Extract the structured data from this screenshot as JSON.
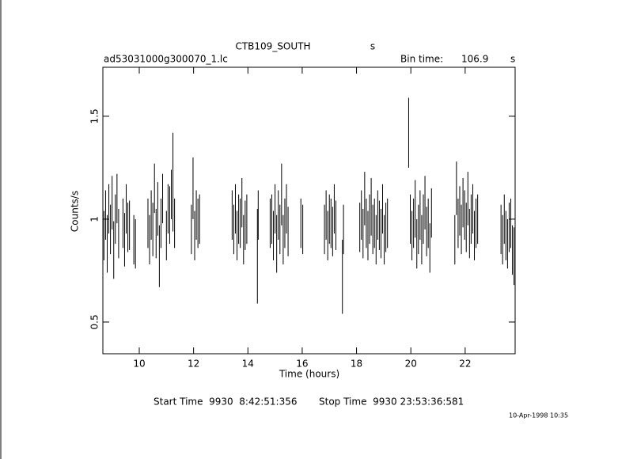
{
  "chart_data": {
    "type": "errorbar",
    "title": "CTB109_SOUTH",
    "title_unit": "s",
    "file_name": "ad53031000g300070_1.lc",
    "bin_time_label": "Bin time:",
    "bin_time": 106.9,
    "bin_time_unit": "s",
    "y_label": "Counts/s",
    "x_label": "Time (hours)",
    "start_time": "Start Time  9930  8:42:51:356",
    "stop_time": "Stop Time  9930 23:53:36:581",
    "timestamp": "10-Apr-1998 10:35",
    "color": "#000000",
    "xlim": [
      8.66,
      23.84
    ],
    "ylim": [
      0.346,
      1.738
    ],
    "xticks": [
      10,
      12,
      14,
      16,
      18,
      20,
      22
    ],
    "yticks": [
      0.5,
      1,
      1.5
    ],
    "x": [
      8.7,
      8.76,
      8.82,
      8.88,
      8.94,
      9.0,
      9.06,
      9.12,
      9.18,
      9.24,
      9.4,
      9.46,
      9.52,
      9.58,
      9.64,
      9.8,
      9.86,
      10.32,
      10.38,
      10.44,
      10.5,
      10.56,
      10.62,
      10.68,
      10.74,
      10.8,
      10.86,
      11.0,
      11.06,
      11.12,
      11.18,
      11.24,
      11.3,
      11.92,
      11.98,
      12.04,
      12.1,
      12.16,
      12.22,
      13.42,
      13.48,
      13.54,
      13.6,
      13.66,
      13.72,
      13.78,
      13.84,
      13.9,
      13.96,
      14.35,
      14.38,
      14.82,
      14.88,
      14.94,
      15.0,
      15.06,
      15.12,
      15.18,
      15.24,
      15.3,
      15.36,
      15.42,
      15.48,
      15.95,
      16.02,
      16.82,
      16.88,
      16.94,
      17.0,
      17.06,
      17.12,
      17.18,
      17.24,
      17.48,
      17.52,
      18.12,
      18.18,
      18.24,
      18.3,
      18.36,
      18.42,
      18.48,
      18.54,
      18.6,
      18.66,
      18.72,
      18.78,
      18.84,
      18.9,
      18.96,
      19.02,
      19.08,
      19.14,
      19.92,
      19.98,
      20.04,
      20.1,
      20.16,
      20.22,
      20.28,
      20.34,
      20.4,
      20.46,
      20.52,
      20.58,
      20.64,
      20.7,
      20.76,
      21.62,
      21.68,
      21.74,
      21.8,
      21.86,
      21.92,
      21.98,
      22.04,
      22.1,
      22.16,
      22.22,
      22.28,
      22.34,
      22.4,
      22.46,
      23.32,
      23.38,
      23.44,
      23.5,
      23.56,
      23.62,
      23.68,
      23.74,
      23.8,
      23.84
    ],
    "values": [
      0.92,
      1.02,
      0.88,
      1.05,
      0.95,
      1.08,
      0.85,
      1.0,
      1.1,
      0.93,
      0.98,
      0.9,
      1.05,
      0.96,
      0.97,
      0.9,
      0.88,
      0.98,
      0.9,
      1.02,
      0.95,
      1.15,
      0.93,
      1.05,
      0.82,
      0.98,
      1.1,
      0.92,
      1.05,
      1.02,
      1.12,
      1.18,
      0.98,
      0.95,
      1.15,
      0.92,
      1.02,
      0.98,
      1.0,
      1.02,
      0.95,
      1.05,
      0.92,
      1.0,
      0.98,
      1.08,
      0.9,
      0.97,
      1.0,
      0.82,
      1.02,
      0.98,
      1.0,
      0.92,
      1.05,
      0.88,
      1.02,
      0.95,
      1.12,
      0.9,
      0.98,
      1.05,
      0.94,
      0.98,
      0.95,
      0.95,
      1.02,
      0.92,
      1.0,
      0.98,
      0.94,
      1.05,
      0.97,
      0.72,
      0.95,
      0.96,
      1.02,
      0.93,
      1.1,
      0.98,
      0.92,
      1.0,
      1.06,
      0.95,
      0.98,
      0.9,
      1.02,
      0.97,
      0.93,
      1.05,
      0.9,
      0.96,
      0.98,
      1.42,
      1.0,
      0.92,
      0.98,
      1.05,
      0.88,
      0.95,
      1.02,
      0.9,
      1.0,
      1.08,
      0.94,
      0.98,
      0.86,
      1.03,
      0.9,
      1.15,
      0.98,
      1.04,
      0.95,
      1.08,
      1.02,
      0.96,
      1.1,
      0.93,
      1.0,
      1.05,
      0.92,
      0.98,
      1.0,
      0.95,
      0.9,
      1.0,
      0.92,
      0.88,
      0.96,
      0.98,
      0.85,
      0.82,
      0.55
    ],
    "errors": [
      0.12,
      0.12,
      0.14,
      0.12,
      0.12,
      0.13,
      0.14,
      0.12,
      0.12,
      0.12,
      0.12,
      0.13,
      0.12,
      0.12,
      0.12,
      0.12,
      0.12,
      0.12,
      0.12,
      0.12,
      0.13,
      0.12,
      0.12,
      0.13,
      0.15,
      0.12,
      0.12,
      0.12,
      0.12,
      0.14,
      0.12,
      0.24,
      0.12,
      0.12,
      0.15,
      0.12,
      0.12,
      0.12,
      0.12,
      0.12,
      0.12,
      0.12,
      0.12,
      0.12,
      0.12,
      0.12,
      0.12,
      0.12,
      0.12,
      0.23,
      0.12,
      0.12,
      0.12,
      0.12,
      0.12,
      0.14,
      0.12,
      0.12,
      0.15,
      0.12,
      0.12,
      0.12,
      0.12,
      0.12,
      0.12,
      0.12,
      0.12,
      0.12,
      0.12,
      0.12,
      0.12,
      0.12,
      0.12,
      0.18,
      0.12,
      0.12,
      0.12,
      0.12,
      0.13,
      0.12,
      0.12,
      0.12,
      0.14,
      0.12,
      0.12,
      0.12,
      0.12,
      0.12,
      0.12,
      0.12,
      0.12,
      0.12,
      0.12,
      0.17,
      0.12,
      0.12,
      0.12,
      0.14,
      0.12,
      0.12,
      0.12,
      0.12,
      0.12,
      0.13,
      0.12,
      0.12,
      0.12,
      0.12,
      0.12,
      0.13,
      0.12,
      0.12,
      0.12,
      0.12,
      0.12,
      0.12,
      0.13,
      0.12,
      0.12,
      0.12,
      0.12,
      0.12,
      0.12,
      0.12,
      0.12,
      0.12,
      0.12,
      0.12,
      0.12,
      0.12,
      0.12,
      0.14,
      0.2
    ]
  }
}
